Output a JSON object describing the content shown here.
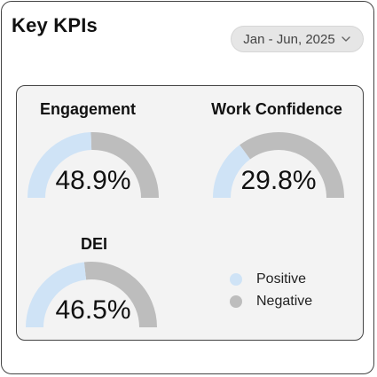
{
  "header": {
    "title": "Key KPIs",
    "date_range": "Jan - Jun, 2025",
    "date_icon": "chevron-down-icon"
  },
  "colors": {
    "positive": "#cfe3f6",
    "negative": "#bdbdbd"
  },
  "kpis": [
    {
      "label": "Engagement",
      "value_text": "48.9%",
      "positive_percent": 48.9
    },
    {
      "label": "Work Confidence",
      "value_text": "29.8%",
      "positive_percent": 29.8
    },
    {
      "label": "DEI",
      "value_text": "46.5%",
      "positive_percent": 46.5
    }
  ],
  "legend": [
    {
      "label": "Positive",
      "color": "#cfe3f6"
    },
    {
      "label": "Negative",
      "color": "#bdbdbd"
    }
  ]
}
